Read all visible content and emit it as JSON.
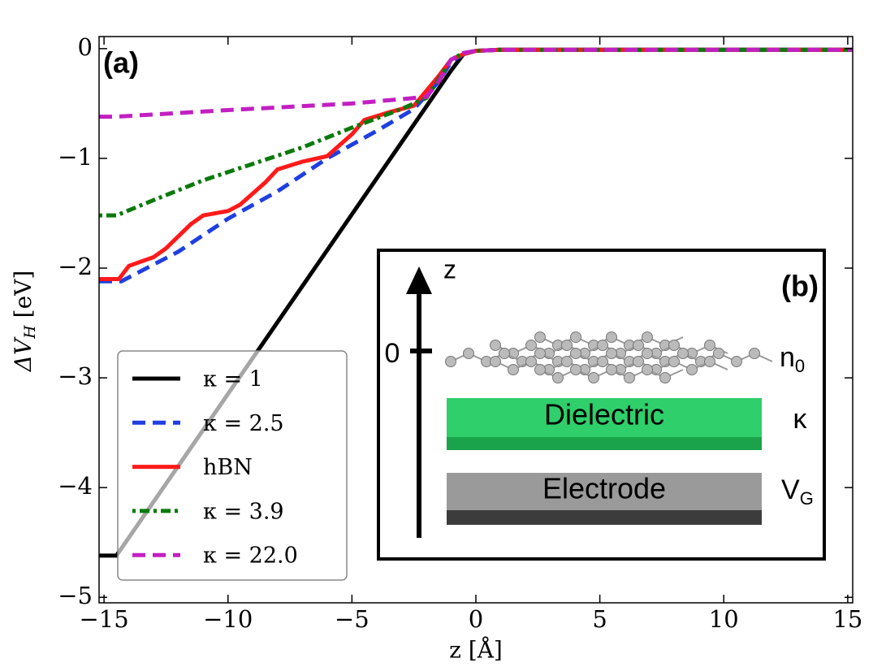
{
  "chart_data": {
    "type": "line",
    "panel_label": "(a)",
    "x_label": "z [Å]",
    "y_label": {
      "text": "ΔV",
      "sub": "H",
      "unit": " [eV]"
    },
    "xlim": [
      -15.2,
      15.2
    ],
    "ylim": [
      -5.05,
      0.11
    ],
    "xticks": [
      {
        "value": -15,
        "label": "−15"
      },
      {
        "value": -10,
        "label": "−10"
      },
      {
        "value": -5,
        "label": "−5"
      },
      0,
      5,
      10,
      15
    ],
    "yticks": [
      0,
      {
        "value": -1,
        "label": "−1"
      },
      {
        "value": -2,
        "label": "−2"
      },
      {
        "value": -3,
        "label": "−3"
      },
      {
        "value": -4,
        "label": "−4"
      },
      {
        "value": -5,
        "label": "−5"
      }
    ],
    "legend": "lower left",
    "series": [
      {
        "name": "κ = 1",
        "color": "#000000",
        "style": "solid",
        "x": [
          -15.2,
          -14.5,
          -1.0,
          -0.5,
          0,
          1,
          15.2
        ],
        "values": [
          -4.62,
          -4.62,
          -0.2,
          -0.05,
          -0.02,
          -0.01,
          -0.01
        ]
      },
      {
        "name": "κ = 2.5",
        "color": "#1f3fe0",
        "style": "dashed",
        "x": [
          -15.2,
          -14.3,
          -12,
          -10,
          -8,
          -6,
          -4,
          -2.5,
          -1.5,
          -1,
          -0.5,
          0,
          1,
          15.2
        ],
        "values": [
          -2.12,
          -2.12,
          -1.85,
          -1.55,
          -1.3,
          -1.0,
          -0.75,
          -0.55,
          -0.3,
          -0.12,
          -0.05,
          -0.02,
          -0.01,
          -0.01
        ]
      },
      {
        "name": "hBN",
        "color": "#ff1a1a",
        "style": "solid",
        "x": [
          -15.2,
          -14.4,
          -14,
          -13,
          -12.5,
          -11.5,
          -11,
          -10,
          -9.5,
          -8.5,
          -8,
          -7,
          -6,
          -5,
          -4.5,
          -3.5,
          -2.5,
          -1.5,
          -1,
          -0.5,
          0,
          1,
          15.2
        ],
        "values": [
          -2.1,
          -2.1,
          -1.98,
          -1.9,
          -1.82,
          -1.6,
          -1.52,
          -1.48,
          -1.42,
          -1.22,
          -1.1,
          -1.03,
          -0.98,
          -0.78,
          -0.65,
          -0.58,
          -0.52,
          -0.25,
          -0.1,
          -0.05,
          -0.02,
          -0.01,
          -0.01
        ]
      },
      {
        "name": "κ = 3.9",
        "color": "#0a7a0a",
        "style": "dotted",
        "x": [
          -15.2,
          -14.5,
          -13,
          -11,
          -9,
          -7,
          -5,
          -3,
          -2,
          -1.5,
          -1,
          -0.5,
          0,
          1,
          15.2
        ],
        "values": [
          -1.52,
          -1.52,
          -1.38,
          -1.2,
          -1.05,
          -0.9,
          -0.72,
          -0.55,
          -0.45,
          -0.28,
          -0.1,
          -0.04,
          -0.02,
          -0.01,
          -0.01
        ]
      },
      {
        "name": "κ = 22.0",
        "color": "#c21fc2",
        "style": "dashed",
        "x": [
          -15.2,
          -14.5,
          -10,
          -5,
          -2,
          -1.5,
          -1,
          -0.5,
          0,
          1,
          15.2
        ],
        "values": [
          -0.62,
          -0.62,
          -0.56,
          -0.5,
          -0.44,
          -0.3,
          -0.1,
          -0.04,
          -0.02,
          -0.01,
          -0.01
        ]
      }
    ],
    "inset": {
      "panel_label": "(b)",
      "axis_label": "z",
      "origin_label": "0",
      "sheet": {
        "symbol": "n",
        "sub": "0"
      },
      "dielectric": {
        "name": "Dielectric",
        "symbol": "κ"
      },
      "electrode": {
        "name": "Electrode",
        "symbol": "V",
        "sub": "G"
      }
    }
  }
}
